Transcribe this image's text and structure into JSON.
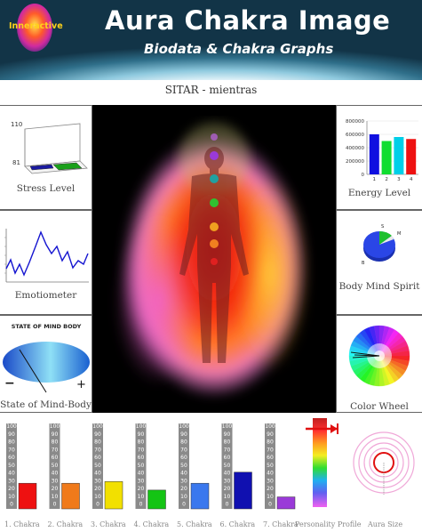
{
  "header": {
    "logo_text": "Inneractive",
    "title": "Aura Chakra Image",
    "subtitle": "Biodata & Chakra Graphs"
  },
  "record_name": "SITAR - mientras",
  "panels": {
    "stress": {
      "label": "Stress Level",
      "axis_max": "110",
      "axis_min": "81"
    },
    "energy": {
      "label": "Energy Level",
      "ticks": [
        "800000",
        "600000",
        "400000",
        "200000",
        "0"
      ],
      "categories": [
        "1",
        "2",
        "3",
        "4"
      ],
      "values": [
        600000,
        500000,
        560000,
        530000
      ],
      "colors": [
        "#1010e0",
        "#10dd30",
        "#00cfe8",
        "#ee1111"
      ]
    },
    "emotiometer": {
      "label": "Emotiometer"
    },
    "body_mind_spirit": {
      "label": "Body Mind Spirit",
      "slice_labels": [
        "B",
        "M",
        "S"
      ]
    },
    "state_of_mind": {
      "label": "State of Mind-Body",
      "caption": "STATE OF MIND BODY",
      "minus": "−",
      "plus": "+"
    },
    "color_wheel": {
      "label": "Color Wheel"
    }
  },
  "chakras": {
    "tick_labels": [
      "100",
      "90",
      "80",
      "70",
      "60",
      "50",
      "40",
      "30",
      "20",
      "10",
      "0"
    ],
    "items": [
      {
        "label": "1. Chakra",
        "value": 30,
        "color": "#ee1111"
      },
      {
        "label": "2. Chakra",
        "value": 30,
        "color": "#f07a1a"
      },
      {
        "label": "3. Chakra",
        "value": 32,
        "color": "#f2e000"
      },
      {
        "label": "4. Chakra",
        "value": 22,
        "color": "#14c414"
      },
      {
        "label": "5. Chakra",
        "value": 30,
        "color": "#3a78ee"
      },
      {
        "label": "6. Chakra",
        "value": 43,
        "color": "#1010b0"
      },
      {
        "label": "7. Chakra",
        "value": 14,
        "color": "#9a3ad8"
      }
    ],
    "personality_label": "Personality Profile",
    "aura_size_label": "Aura Size"
  }
}
